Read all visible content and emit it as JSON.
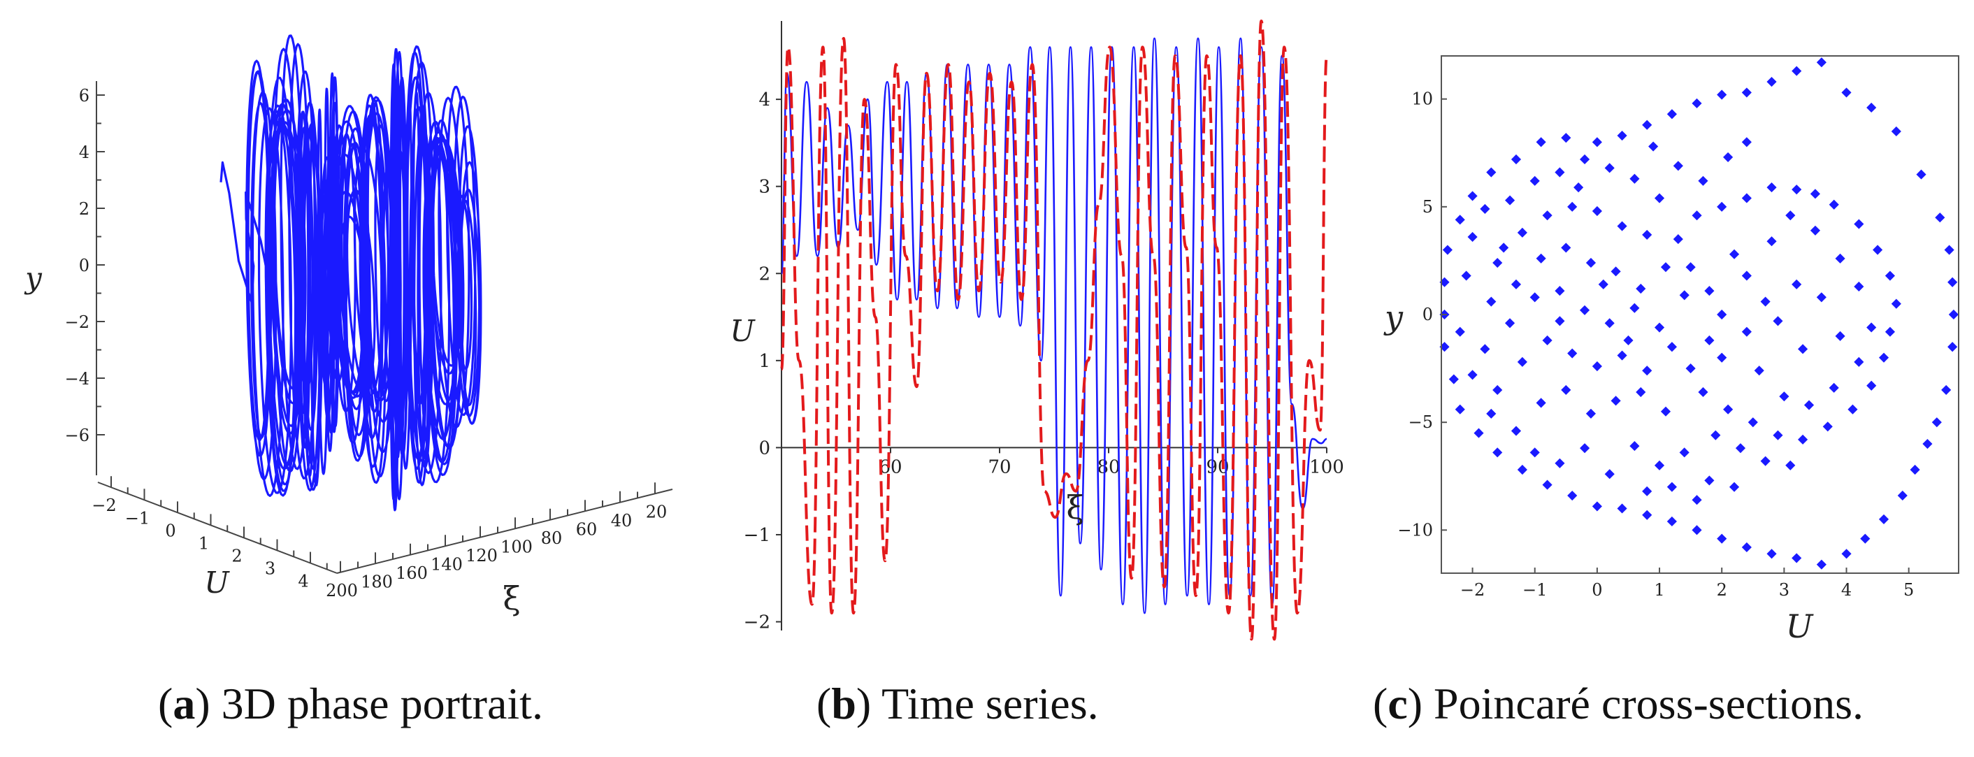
{
  "chart_data": [
    {
      "id": "a",
      "type": "line",
      "subtype": "3d-phase-portrait",
      "caption": {
        "letter": "a",
        "open": "(",
        "close": ")",
        "text": " 3D phase portrait."
      },
      "axes": {
        "y": {
          "label": "y",
          "ticks": [
            6,
            4,
            2,
            0,
            -2,
            -4,
            -6
          ],
          "tick_labels": [
            "6",
            "4",
            "2",
            "0",
            "−2",
            "−4",
            "−6"
          ]
        },
        "u": {
          "label": "U",
          "ticks": [
            -2,
            -1,
            0,
            1,
            2,
            3,
            4
          ],
          "tick_labels": [
            "−2",
            "−1",
            "0",
            "1",
            "2",
            "3",
            "4"
          ]
        },
        "xi": {
          "label": "ξ",
          "ticks": [
            200,
            180,
            160,
            140,
            120,
            100,
            80,
            60,
            40,
            20
          ],
          "tick_labels": [
            "200",
            "180",
            "160",
            "140",
            "120",
            "100",
            "80",
            "60",
            "40",
            "20"
          ]
        }
      },
      "series_color": "#1a1aff",
      "trajectory": {
        "xi_start": 10,
        "xi_end": 200,
        "u_min": -2.2,
        "u_max": 4.8,
        "y_min": -7,
        "y_max": 7
      }
    },
    {
      "id": "b",
      "type": "line",
      "caption": {
        "letter": "b",
        "open": "(",
        "close": ")",
        "text": " Time series."
      },
      "xlabel": "ξ",
      "ylabel": "U",
      "xlim": [
        50,
        100
      ],
      "ylim": [
        -2.1,
        4.9
      ],
      "x_ticks": [
        60,
        70,
        80,
        90,
        100
      ],
      "y_ticks": [
        -2,
        -1,
        0,
        1,
        2,
        3,
        4
      ],
      "y_tick_labels": [
        "−2",
        "−1",
        "0",
        "1",
        "2",
        "3",
        "4"
      ],
      "series": [
        {
          "name": "solid",
          "style": "solid",
          "color": "#1a1aff",
          "x": [
            50.0,
            50.5,
            51.4,
            52.3,
            53.3,
            54.2,
            55.2,
            56.1,
            57.0,
            57.9,
            58.7,
            59.7,
            60.6,
            61.5,
            62.4,
            63.3,
            64.3,
            65.2,
            66.1,
            67.1,
            68.1,
            69.0,
            70.0,
            70.9,
            71.9,
            72.8,
            73.8,
            74.6,
            75.6,
            76.5,
            77.4,
            78.4,
            79.3,
            80.3,
            81.3,
            82.3,
            83.3,
            84.2,
            85.2,
            86.2,
            87.2,
            88.2,
            89.2,
            90.1,
            91.1,
            92.1,
            93.0,
            94.0,
            95.0,
            95.9,
            96.8,
            97.8,
            98.7,
            99.5,
            100.0
          ],
          "y": [
            2.0,
            4.3,
            2.2,
            4.2,
            2.2,
            3.9,
            2.3,
            3.7,
            2.5,
            4.0,
            2.1,
            4.2,
            1.7,
            4.2,
            1.7,
            4.3,
            1.6,
            4.4,
            1.6,
            4.4,
            1.5,
            4.4,
            1.5,
            4.4,
            1.4,
            4.6,
            1.0,
            4.6,
            -1.7,
            4.6,
            -1.1,
            4.6,
            -1.4,
            4.6,
            -1.8,
            4.6,
            -1.9,
            4.7,
            -1.8,
            4.6,
            -1.7,
            4.7,
            -1.8,
            4.6,
            -1.7,
            4.7,
            -1.7,
            4.6,
            -1.8,
            4.5,
            0.5,
            -0.7,
            0.1,
            0.05,
            0.1
          ]
        },
        {
          "name": "dashed",
          "style": "dashed",
          "color": "#e31a1c",
          "x": [
            50.0,
            50.6,
            51.6,
            52.8,
            53.8,
            54.6,
            55.7,
            56.6,
            57.6,
            58.6,
            59.5,
            60.5,
            61.4,
            62.4,
            63.3,
            64.3,
            65.3,
            66.2,
            67.2,
            68.1,
            69.1,
            70.1,
            71.1,
            72.0,
            73.0,
            74.1,
            75.1,
            76.1,
            77.0,
            78.1,
            79.1,
            80.1,
            81.2,
            82.1,
            83.1,
            84.1,
            85.1,
            86.1,
            87.1,
            88.0,
            89.0,
            89.9,
            91.0,
            92.1,
            93.1,
            94.0,
            95.2,
            96.1,
            97.3,
            98.4,
            99.4,
            100.0
          ],
          "y": [
            0.9,
            4.6,
            1.0,
            -1.8,
            4.6,
            -1.9,
            4.7,
            -1.9,
            4.0,
            1.5,
            -1.3,
            4.4,
            2.2,
            0.7,
            4.3,
            1.8,
            4.4,
            1.7,
            4.2,
            1.8,
            4.3,
            1.9,
            4.2,
            1.7,
            4.4,
            -0.5,
            -0.8,
            -0.3,
            -0.5,
            1.0,
            2.8,
            4.6,
            2.2,
            -1.5,
            4.6,
            2.2,
            -1.6,
            4.5,
            2.3,
            -1.7,
            4.5,
            2.3,
            -1.9,
            4.5,
            -2.2,
            4.9,
            -2.2,
            4.6,
            -1.9,
            1.0,
            0.2,
            4.5
          ]
        }
      ]
    },
    {
      "id": "c",
      "type": "scatter",
      "caption": {
        "letter": "c",
        "open": "(",
        "close": ")",
        "text": " Poincaré cross-sections."
      },
      "xlabel": "U",
      "ylabel": "y",
      "xlim": [
        -2.5,
        5.8
      ],
      "ylim": [
        -12,
        12
      ],
      "x_ticks": [
        -2,
        -1,
        0,
        1,
        2,
        3,
        4,
        5
      ],
      "x_tick_labels": [
        "−2",
        "−1",
        "0",
        "1",
        "2",
        "3",
        "4",
        "5"
      ],
      "y_ticks": [
        -10,
        -5,
        0,
        5,
        10
      ],
      "y_tick_labels": [
        "−10",
        "−5",
        "0",
        "5",
        "10"
      ],
      "series": [
        {
          "name": "poincare",
          "color": "#1a1aff",
          "points": [
            [
              3.6,
              11.7
            ],
            [
              3.2,
              11.3
            ],
            [
              2.8,
              10.8
            ],
            [
              2.4,
              10.3
            ],
            [
              2.0,
              10.2
            ],
            [
              1.6,
              9.8
            ],
            [
              1.2,
              9.3
            ],
            [
              0.8,
              8.8
            ],
            [
              0.4,
              8.3
            ],
            [
              0.0,
              8.0
            ],
            [
              -0.5,
              8.2
            ],
            [
              -0.9,
              8.0
            ],
            [
              -1.3,
              7.2
            ],
            [
              -1.7,
              6.6
            ],
            [
              -2.0,
              5.5
            ],
            [
              -2.2,
              4.4
            ],
            [
              -2.4,
              3.0
            ],
            [
              -2.45,
              1.5
            ],
            [
              -2.45,
              0.0
            ],
            [
              -2.45,
              -1.5
            ],
            [
              -2.3,
              -3.0
            ],
            [
              -2.2,
              -4.4
            ],
            [
              -1.9,
              -5.5
            ],
            [
              -1.6,
              -6.4
            ],
            [
              -1.2,
              -7.2
            ],
            [
              -0.8,
              -7.9
            ],
            [
              -0.4,
              -8.4
            ],
            [
              0.0,
              -8.9
            ],
            [
              0.4,
              -9.0
            ],
            [
              0.8,
              -9.3
            ],
            [
              1.2,
              -9.6
            ],
            [
              1.6,
              -10.0
            ],
            [
              2.0,
              -10.4
            ],
            [
              2.4,
              -10.8
            ],
            [
              2.8,
              -11.1
            ],
            [
              3.2,
              -11.3
            ],
            [
              3.6,
              -11.6
            ],
            [
              4.0,
              -11.1
            ],
            [
              4.3,
              -10.4
            ],
            [
              4.6,
              -9.5
            ],
            [
              4.9,
              -8.4
            ],
            [
              5.1,
              -7.2
            ],
            [
              5.3,
              -6.0
            ],
            [
              5.45,
              -5.0
            ],
            [
              5.6,
              -3.5
            ],
            [
              5.7,
              -1.5
            ],
            [
              5.72,
              0.0
            ],
            [
              5.7,
              1.5
            ],
            [
              5.65,
              3.0
            ],
            [
              5.5,
              4.5
            ],
            [
              5.2,
              6.5
            ],
            [
              4.8,
              8.5
            ],
            [
              4.4,
              9.6
            ],
            [
              4.0,
              10.3
            ],
            [
              3.2,
              5.8
            ],
            [
              2.8,
              5.9
            ],
            [
              2.4,
              5.4
            ],
            [
              2.0,
              5.0
            ],
            [
              1.6,
              4.6
            ],
            [
              1.3,
              3.5
            ],
            [
              1.5,
              2.2
            ],
            [
              1.8,
              1.1
            ],
            [
              2.0,
              0.0
            ],
            [
              1.8,
              -1.2
            ],
            [
              1.5,
              -2.5
            ],
            [
              1.7,
              -3.6
            ],
            [
              2.1,
              -4.4
            ],
            [
              2.5,
              -5.0
            ],
            [
              2.9,
              -5.6
            ],
            [
              3.3,
              -5.8
            ],
            [
              3.7,
              -5.2
            ],
            [
              4.1,
              -4.4
            ],
            [
              4.4,
              -3.3
            ],
            [
              4.6,
              -2.0
            ],
            [
              4.7,
              -0.8
            ],
            [
              4.8,
              0.5
            ],
            [
              4.7,
              1.8
            ],
            [
              4.5,
              3.0
            ],
            [
              4.2,
              4.2
            ],
            [
              3.8,
              5.1
            ],
            [
              3.5,
              5.6
            ],
            [
              -1.8,
              4.9
            ],
            [
              -1.4,
              5.3
            ],
            [
              -1.0,
              6.2
            ],
            [
              -0.6,
              6.6
            ],
            [
              -0.2,
              7.2
            ],
            [
              0.2,
              6.8
            ],
            [
              0.6,
              6.3
            ],
            [
              1.0,
              5.4
            ],
            [
              -2.0,
              3.6
            ],
            [
              -1.6,
              2.4
            ],
            [
              -1.2,
              3.8
            ],
            [
              -0.8,
              4.6
            ],
            [
              -0.4,
              5.0
            ],
            [
              0.0,
              4.8
            ],
            [
              0.4,
              4.1
            ],
            [
              0.8,
              3.7
            ],
            [
              -2.1,
              1.8
            ],
            [
              -1.7,
              0.6
            ],
            [
              -1.3,
              1.4
            ],
            [
              -0.9,
              2.6
            ],
            [
              -0.5,
              3.1
            ],
            [
              -0.1,
              2.4
            ],
            [
              0.3,
              2.0
            ],
            [
              0.7,
              1.2
            ],
            [
              1.1,
              2.2
            ],
            [
              -2.2,
              -0.8
            ],
            [
              -1.8,
              -1.6
            ],
            [
              -1.4,
              -0.4
            ],
            [
              -1.0,
              0.8
            ],
            [
              -0.6,
              1.1
            ],
            [
              -0.2,
              0.2
            ],
            [
              0.2,
              -0.4
            ],
            [
              0.6,
              0.3
            ],
            [
              1.0,
              -0.6
            ],
            [
              -2.0,
              -2.8
            ],
            [
              -1.6,
              -3.5
            ],
            [
              -1.2,
              -2.2
            ],
            [
              -0.8,
              -1.2
            ],
            [
              -0.4,
              -1.8
            ],
            [
              0.0,
              -2.4
            ],
            [
              0.4,
              -1.9
            ],
            [
              0.8,
              -2.6
            ],
            [
              1.2,
              -1.5
            ],
            [
              -1.7,
              -4.6
            ],
            [
              -1.3,
              -5.4
            ],
            [
              -0.9,
              -4.1
            ],
            [
              -0.5,
              -3.5
            ],
            [
              -0.1,
              -4.6
            ],
            [
              0.3,
              -4.0
            ],
            [
              0.7,
              -3.6
            ],
            [
              1.1,
              -4.5
            ],
            [
              -1.0,
              -6.4
            ],
            [
              -0.6,
              -6.9
            ],
            [
              -0.2,
              -6.2
            ],
            [
              0.2,
              -7.4
            ],
            [
              0.6,
              -6.1
            ],
            [
              1.0,
              -7.0
            ],
            [
              1.4,
              -6.4
            ],
            [
              1.8,
              -7.7
            ],
            [
              2.2,
              -8.0
            ],
            [
              1.3,
              6.9
            ],
            [
              1.7,
              6.2
            ],
            [
              2.1,
              7.3
            ],
            [
              2.4,
              8.0
            ],
            [
              0.9,
              7.8
            ],
            [
              -0.3,
              5.9
            ],
            [
              -1.5,
              3.1
            ],
            [
              -0.6,
              -0.3
            ],
            [
              0.1,
              1.4
            ],
            [
              0.5,
              -1.2
            ],
            [
              1.4,
              0.9
            ],
            [
              2.4,
              1.8
            ],
            [
              2.8,
              3.4
            ],
            [
              3.1,
              4.6
            ],
            [
              3.5,
              3.9
            ],
            [
              3.9,
              2.6
            ],
            [
              4.2,
              1.3
            ],
            [
              4.4,
              -0.6
            ],
            [
              4.2,
              -2.2
            ],
            [
              3.8,
              -3.4
            ],
            [
              3.4,
              -4.2
            ],
            [
              3.0,
              -3.8
            ],
            [
              2.6,
              -2.6
            ],
            [
              2.4,
              -0.8
            ],
            [
              2.7,
              0.6
            ],
            [
              3.2,
              1.4
            ],
            [
              3.6,
              0.8
            ],
            [
              3.9,
              -1.0
            ],
            [
              3.3,
              -1.6
            ],
            [
              2.9,
              -0.3
            ],
            [
              2.2,
              2.8
            ],
            [
              2.0,
              -2.0
            ],
            [
              1.9,
              -5.6
            ],
            [
              2.3,
              -6.2
            ],
            [
              2.7,
              -6.8
            ],
            [
              3.1,
              -7.0
            ],
            [
              1.6,
              -8.6
            ],
            [
              1.2,
              -8.0
            ],
            [
              0.8,
              -8.2
            ]
          ]
        }
      ]
    }
  ]
}
